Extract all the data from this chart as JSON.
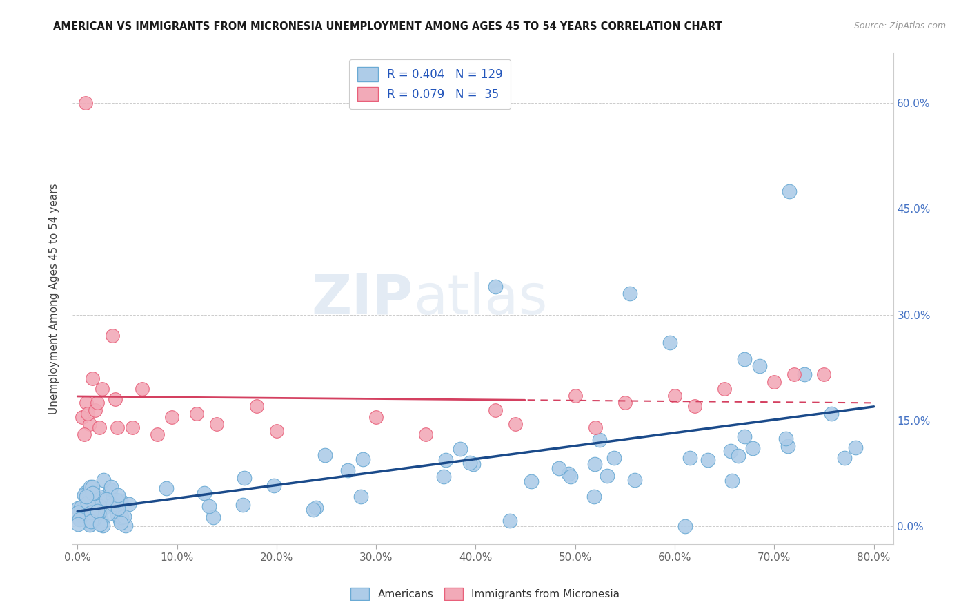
{
  "title": "AMERICAN VS IMMIGRANTS FROM MICRONESIA UNEMPLOYMENT AMONG AGES 45 TO 54 YEARS CORRELATION CHART",
  "source": "Source: ZipAtlas.com",
  "ylabel": "Unemployment Among Ages 45 to 54 years",
  "xlim": [
    -0.005,
    0.82
  ],
  "ylim": [
    -0.025,
    0.67
  ],
  "xtick_labels": [
    "0.0%",
    "",
    "",
    "",
    "",
    "",
    "",
    "",
    "",
    "10.0%",
    "",
    "",
    "",
    "",
    "",
    "",
    "",
    "",
    "",
    "20.0%",
    "",
    "",
    "",
    "",
    "",
    "",
    "",
    "",
    "",
    "30.0%",
    "",
    "",
    "",
    "",
    "",
    "",
    "",
    "",
    "",
    "40.0%",
    "",
    "",
    "",
    "",
    "",
    "",
    "",
    "",
    "",
    "50.0%",
    "",
    "",
    "",
    "",
    "",
    "",
    "",
    "",
    "",
    "60.0%",
    "",
    "",
    "",
    "",
    "",
    "",
    "",
    "",
    "",
    "70.0%",
    "",
    "",
    "",
    "",
    "",
    "",
    "",
    "",
    "",
    "80.0%"
  ],
  "xtick_values_major": [
    0.0,
    0.1,
    0.2,
    0.3,
    0.4,
    0.5,
    0.6,
    0.7,
    0.8
  ],
  "ytick_labels_right": [
    "0.0%",
    "15.0%",
    "30.0%",
    "45.0%",
    "60.0%"
  ],
  "ytick_values": [
    0.0,
    0.15,
    0.3,
    0.45,
    0.6
  ],
  "americans_color": "#aecce8",
  "americans_edge_color": "#6aaad4",
  "micronesia_color": "#f2aab8",
  "micronesia_edge_color": "#e8607a",
  "trendline_americans_color": "#1a4a8a",
  "trendline_micronesia_solid_color": "#d44060",
  "trendline_micronesia_dashed_color": "#d44060",
  "legend_R_americans": "0.404",
  "legend_N_americans": "129",
  "legend_R_micronesia": "0.079",
  "legend_N_micronesia": "35",
  "watermark_zip": "ZIP",
  "watermark_atlas": "atlas",
  "background_color": "#ffffff",
  "grid_color": "#cccccc",
  "right_axis_color": "#4472c4"
}
